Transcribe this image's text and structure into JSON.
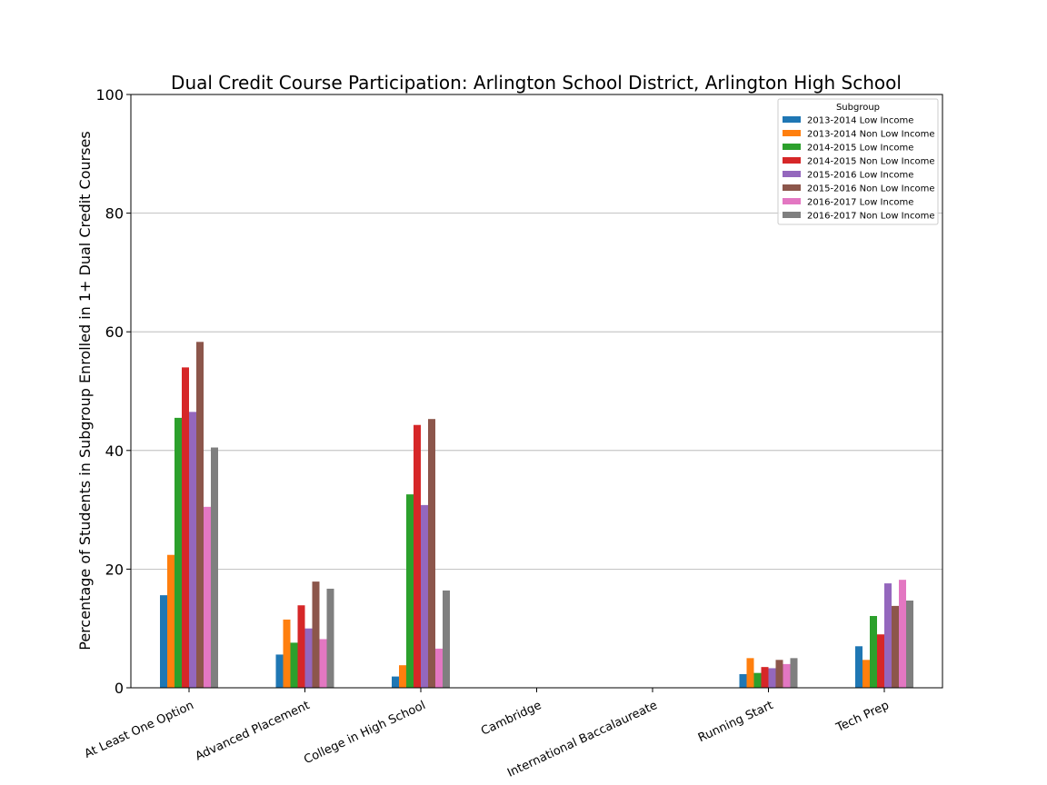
{
  "chart_data": {
    "type": "bar",
    "title": "Dual Credit Course Participation: Arlington School District, Arlington High School",
    "ylabel": "Percentage of Students in Subgroup Enrolled in 1+ Dual Credit Courses",
    "xlabel": "",
    "ylim": [
      0,
      100
    ],
    "yticks": [
      0,
      20,
      40,
      60,
      80,
      100
    ],
    "grid": "horizontal",
    "legend_title": "Subgroup",
    "legend_position": "top-right",
    "categories": [
      "At Least One Option",
      "Advanced Placement",
      "College in High School",
      "Cambridge",
      "International Baccalaureate",
      "Running Start",
      "Tech Prep"
    ],
    "series": [
      {
        "name": "2013-2014 Low Income",
        "color": "#1f77b4",
        "values": [
          15.6,
          5.6,
          1.9,
          0,
          0,
          2.3,
          7.0
        ]
      },
      {
        "name": "2013-2014 Non Low Income",
        "color": "#ff7f0e",
        "values": [
          22.4,
          11.5,
          3.8,
          0,
          0,
          5.0,
          4.7
        ]
      },
      {
        "name": "2014-2015 Low Income",
        "color": "#2ca02c",
        "values": [
          45.5,
          7.6,
          32.6,
          0,
          0,
          2.5,
          12.1
        ]
      },
      {
        "name": "2014-2015 Non Low Income",
        "color": "#d62728",
        "values": [
          54.0,
          13.9,
          44.3,
          0,
          0,
          3.5,
          9.0
        ]
      },
      {
        "name": "2015-2016 Low Income",
        "color": "#9467bd",
        "values": [
          46.5,
          10.0,
          30.8,
          0,
          0,
          3.3,
          17.6
        ]
      },
      {
        "name": "2015-2016 Non Low Income",
        "color": "#8c564b",
        "values": [
          58.3,
          17.9,
          45.3,
          0,
          0,
          4.7,
          13.8
        ]
      },
      {
        "name": "2016-2017 Low Income",
        "color": "#e377c2",
        "values": [
          30.5,
          8.2,
          6.6,
          0,
          0,
          4.0,
          18.2
        ]
      },
      {
        "name": "2016-2017 Non Low Income",
        "color": "#7f7f7f",
        "values": [
          40.5,
          16.7,
          16.4,
          0,
          0,
          5.0,
          14.7
        ]
      }
    ]
  }
}
